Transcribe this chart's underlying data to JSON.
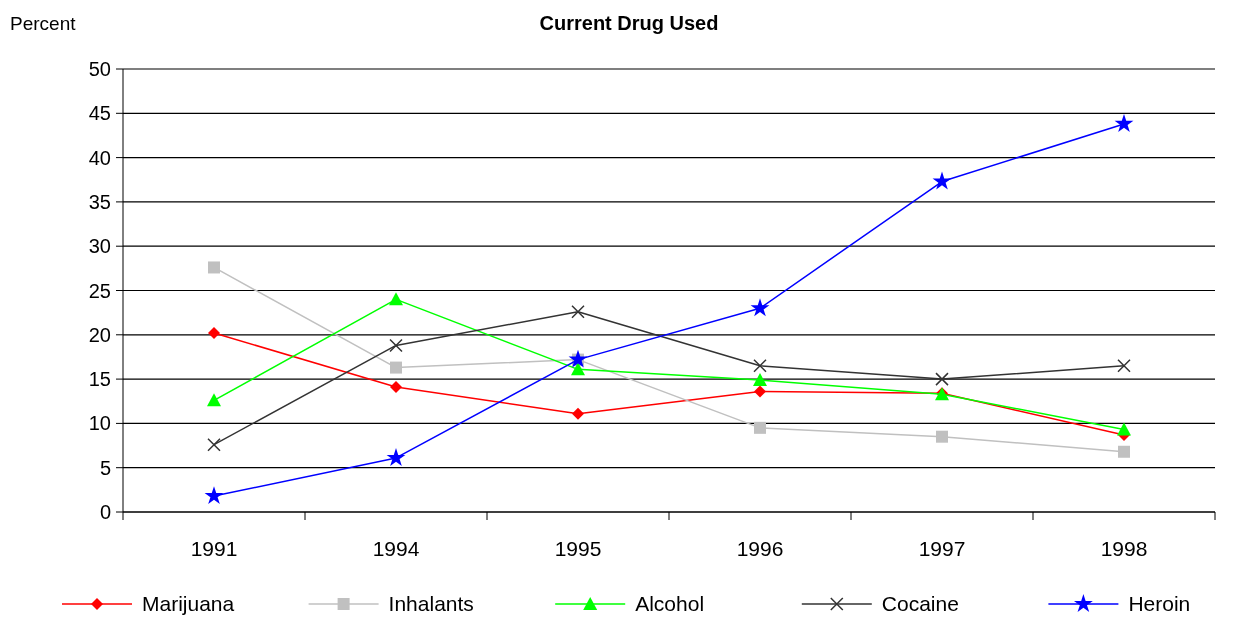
{
  "chart_data": {
    "type": "line",
    "title": "Current Drug Used",
    "ylabel": "Percent",
    "categories": [
      "1991",
      "1994",
      "1995",
      "1996",
      "1997",
      "1998"
    ],
    "ylim": [
      0,
      50
    ],
    "yticks": [
      0,
      5,
      10,
      15,
      20,
      25,
      30,
      35,
      40,
      45,
      50
    ],
    "grid": "y",
    "legend": "bottom",
    "series": [
      {
        "name": "Marijuana",
        "color": "#ff0000",
        "marker": "diamond",
        "values": [
          20.2,
          14.1,
          11.1,
          13.6,
          13.4,
          8.7
        ]
      },
      {
        "name": "Inhalants",
        "color": "#c0c0c0",
        "marker": "square",
        "values": [
          27.6,
          16.3,
          17.2,
          9.5,
          8.5,
          6.8
        ]
      },
      {
        "name": "Alcohol",
        "color": "#00ff00",
        "marker": "triangle",
        "values": [
          12.6,
          24.0,
          16.1,
          14.9,
          13.3,
          9.3
        ]
      },
      {
        "name": "Cocaine",
        "color": "#333333",
        "marker": "cross",
        "values": [
          7.6,
          18.8,
          22.6,
          16.5,
          15.0,
          16.5
        ]
      },
      {
        "name": "Heroin",
        "color": "#0000ff",
        "marker": "star",
        "values": [
          1.8,
          6.1,
          17.2,
          23.0,
          37.3,
          43.8
        ]
      }
    ]
  }
}
